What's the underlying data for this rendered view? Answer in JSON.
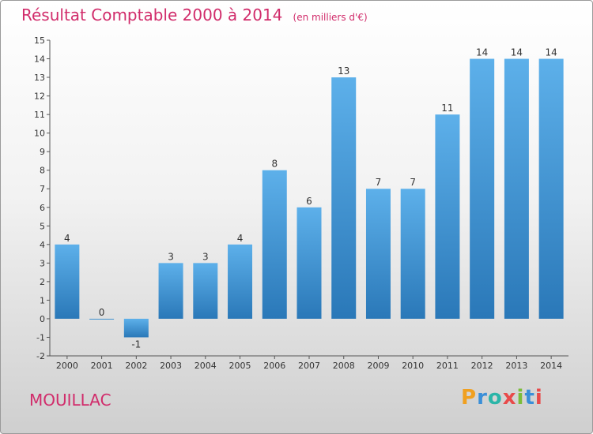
{
  "chart_data": {
    "type": "bar",
    "title": "Résultat Comptable 2000 à 2014",
    "subtitle": "(en milliers d'€)",
    "categories": [
      "2000",
      "2001",
      "2002",
      "2003",
      "2004",
      "2005",
      "2006",
      "2007",
      "2008",
      "2009",
      "2010",
      "2011",
      "2012",
      "2013",
      "2014"
    ],
    "values": [
      4,
      0,
      -1,
      3,
      3,
      4,
      8,
      6,
      13,
      7,
      7,
      11,
      14,
      14,
      14
    ],
    "ylim": [
      -2,
      15
    ],
    "yticks": [
      -2,
      -1,
      0,
      1,
      2,
      3,
      4,
      5,
      6,
      7,
      8,
      9,
      10,
      11,
      12,
      13,
      14,
      15
    ],
    "xlabel": "",
    "ylabel": "",
    "grid": false,
    "bar_color": "#4a9fdf"
  },
  "footer": {
    "town": "MOUILLAC",
    "logo_letters": [
      "P",
      "r",
      "o",
      "x",
      "i",
      "t",
      "i"
    ],
    "logo_colors": [
      "#f0a020",
      "#3a8fd8",
      "#2bb5a8",
      "#e84a4a",
      "#7bbd3a",
      "#3a8fd8",
      "#e84a4a"
    ]
  }
}
